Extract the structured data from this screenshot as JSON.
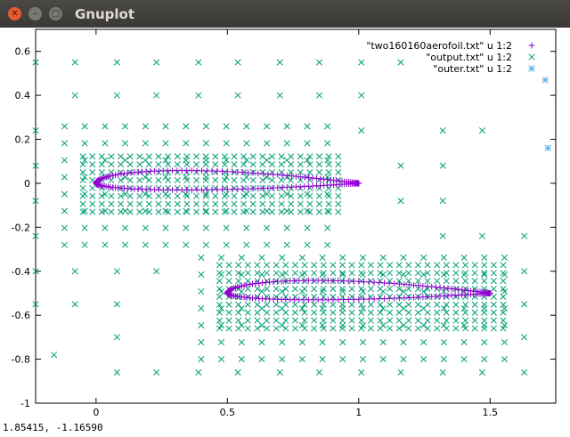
{
  "window": {
    "title": "Gnuplot"
  },
  "status": {
    "coords": "1.85415,  -1.16590"
  },
  "colors": {
    "purple": "#9400d3",
    "teal": "#009e73",
    "teal2": "#56b4e9",
    "axis": "#000000"
  },
  "chart_data": {
    "type": "scatter",
    "title": "",
    "xlabel": "",
    "ylabel": "",
    "xlim": [
      -0.23,
      1.75
    ],
    "ylim": [
      -1.0,
      0.7
    ],
    "xticks": [
      0,
      0.5,
      1,
      1.5
    ],
    "xtick_labels": [
      "0",
      "0.5",
      "1",
      "1.5"
    ],
    "yticks": [
      -1,
      -0.8,
      -0.6,
      -0.4,
      -0.2,
      0,
      0.2,
      0.4,
      0.6
    ],
    "ytick_labels": [
      "-1",
      "-0.8",
      "-0.6",
      "-0.4",
      "-0.2",
      "0",
      "0.2",
      "0.4",
      "0.6"
    ],
    "legend_position": "top-right",
    "series": [
      {
        "name": "\"two160160aerofoil.txt\" u 1:2",
        "marker": "plus",
        "color": "#9400d3",
        "shape": "aerofoil-pair",
        "airfoils": [
          {
            "x0": 0.0,
            "x1": 1.0,
            "y": 0.0,
            "upper_thickness": 0.058,
            "lower_thickness": 0.03,
            "points_per_side": 80
          },
          {
            "x0": 0.5,
            "x1": 1.5,
            "y": -0.5,
            "upper_thickness": 0.058,
            "lower_thickness": 0.03,
            "points_per_side": 80
          }
        ]
      },
      {
        "name": "\"output.txt\" u 1:2",
        "marker": "cross",
        "color": "#009e73",
        "grids": [
          {
            "x": [
              -0.12,
              0.92
            ],
            "y": [
              -0.28,
              0.28
            ],
            "step": 0.077
          },
          {
            "x": [
              -0.05,
              0.95
            ],
            "y": [
              -0.13,
              0.13
            ],
            "step": 0.036
          },
          {
            "x": [
              0.4,
              1.6
            ],
            "y": [
              -0.8,
              -0.27
            ],
            "step": 0.077
          },
          {
            "x": [
              0.47,
              1.55
            ],
            "y": [
              -0.66,
              -0.36
            ],
            "step": 0.036
          }
        ],
        "sparse_points": [
          [
            -0.23,
            0.55
          ],
          [
            -0.08,
            0.55
          ],
          [
            0.08,
            0.55
          ],
          [
            0.23,
            0.55
          ],
          [
            0.39,
            0.55
          ],
          [
            0.54,
            0.55
          ],
          [
            0.7,
            0.55
          ],
          [
            0.85,
            0.55
          ],
          [
            1.01,
            0.55
          ],
          [
            1.16,
            0.55
          ],
          [
            -0.23,
            0.24
          ],
          [
            -0.23,
            0.08
          ],
          [
            -0.23,
            -0.08
          ],
          [
            -0.23,
            -0.24
          ],
          [
            -0.08,
            0.4
          ],
          [
            0.08,
            0.4
          ],
          [
            0.23,
            0.4
          ],
          [
            0.39,
            0.4
          ],
          [
            0.54,
            0.4
          ],
          [
            0.7,
            0.4
          ],
          [
            0.85,
            0.4
          ],
          [
            1.01,
            0.4
          ],
          [
            -0.08,
            -0.4
          ],
          [
            0.08,
            -0.4
          ],
          [
            0.23,
            -0.4
          ],
          [
            -0.23,
            -0.4
          ],
          [
            -0.23,
            -0.55
          ],
          [
            -0.08,
            -0.55
          ],
          [
            0.08,
            -0.55
          ],
          [
            0.08,
            -0.7
          ],
          [
            0.08,
            -0.86
          ],
          [
            0.23,
            -0.86
          ],
          [
            -0.16,
            -0.78
          ],
          [
            0.39,
            -0.86
          ],
          [
            0.54,
            -0.86
          ],
          [
            0.7,
            -0.86
          ],
          [
            0.85,
            -0.86
          ],
          [
            1.01,
            -0.86
          ],
          [
            1.16,
            -0.86
          ],
          [
            1.32,
            -0.86
          ],
          [
            1.47,
            -0.86
          ],
          [
            1.32,
            0.24
          ],
          [
            1.47,
            0.24
          ],
          [
            1.32,
            0.08
          ],
          [
            1.32,
            -0.08
          ],
          [
            1.32,
            -0.24
          ],
          [
            1.47,
            -0.24
          ],
          [
            1.63,
            -0.24
          ],
          [
            1.16,
            0.08
          ],
          [
            1.16,
            -0.08
          ],
          [
            1.01,
            0.24
          ],
          [
            1.63,
            -0.4
          ],
          [
            1.63,
            -0.55
          ],
          [
            1.63,
            -0.7
          ],
          [
            1.63,
            -0.86
          ]
        ]
      },
      {
        "name": "\"outer.txt\" u 1:2",
        "marker": "star",
        "color": "#56b4e9",
        "points": [
          [
            1.71,
            0.47
          ],
          [
            1.72,
            0.16
          ]
        ]
      }
    ]
  }
}
